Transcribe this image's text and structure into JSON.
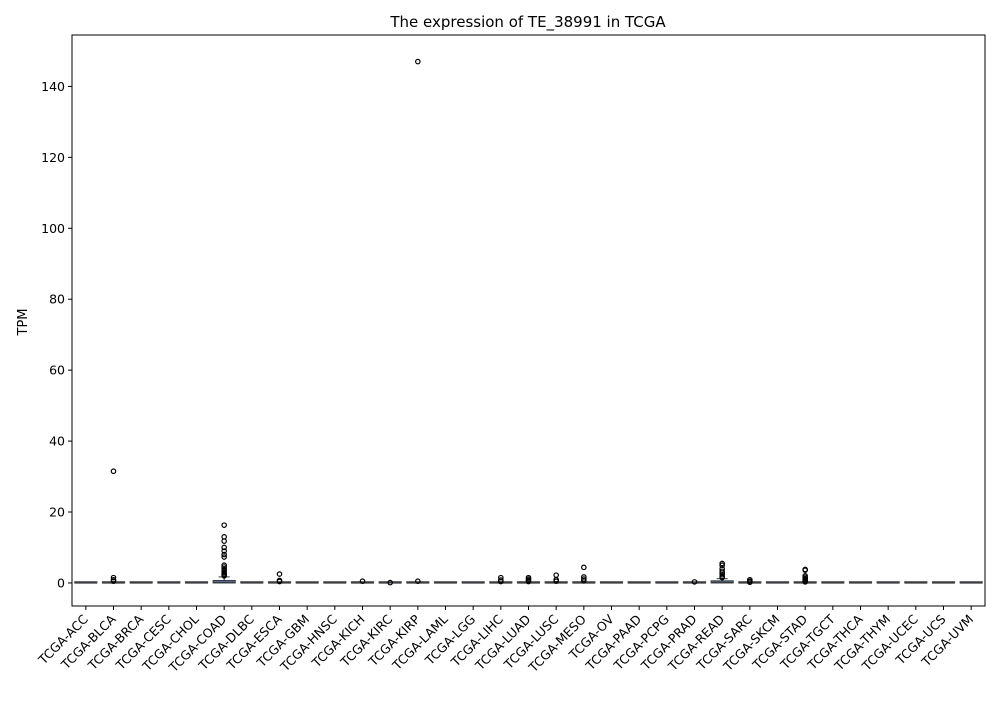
{
  "chart_data": {
    "type": "box",
    "title": "The expression of TE_38991 in TCGA",
    "xlabel": "",
    "ylabel": "TPM",
    "ylim": [
      -6.5,
      154.5
    ],
    "yticks": [
      0,
      20,
      40,
      60,
      80,
      100,
      120,
      140
    ],
    "grid": false,
    "categories": [
      "TCGA-ACC",
      "TCGA-BLCA",
      "TCGA-BRCA",
      "TCGA-CESC",
      "TCGA-CHOL",
      "TCGA-COAD",
      "TCGA-DLBC",
      "TCGA-ESCA",
      "TCGA-GBM",
      "TCGA-HNSC",
      "TCGA-KICH",
      "TCGA-KIRC",
      "TCGA-KIRP",
      "TCGA-LAML",
      "TCGA-LGG",
      "TCGA-LIHC",
      "TCGA-LUAD",
      "TCGA-LUSC",
      "TCGA-MESO",
      "TCGA-OV",
      "TCGA-PAAD",
      "TCGA-PCPG",
      "TCGA-PRAD",
      "TCGA-READ",
      "TCGA-SARC",
      "TCGA-SKCM",
      "TCGA-STAD",
      "TCGA-TGCT",
      "TCGA-THCA",
      "TCGA-THYM",
      "TCGA-UCEC",
      "TCGA-UCS",
      "TCGA-UVM"
    ],
    "boxes": [
      {
        "q1": 0,
        "median": 0,
        "q3": 0,
        "whisker_high": 0,
        "outliers": []
      },
      {
        "q1": 0,
        "median": 0,
        "q3": 0.05,
        "whisker_high": 0.12,
        "outliers": [
          31.5,
          1.5,
          0.9,
          0.5
        ]
      },
      {
        "q1": 0,
        "median": 0,
        "q3": 0,
        "whisker_high": 0,
        "outliers": []
      },
      {
        "q1": 0,
        "median": 0,
        "q3": 0,
        "whisker_high": 0,
        "outliers": []
      },
      {
        "q1": 0,
        "median": 0,
        "q3": 0,
        "whisker_high": 0,
        "outliers": []
      },
      {
        "q1": 0,
        "median": 0.1,
        "q3": 0.7,
        "whisker_high": 1.7,
        "outliers": [
          16.3,
          13,
          11.8,
          10,
          9,
          8,
          7.3,
          5,
          4.5,
          4,
          3.5,
          3,
          2.6,
          2.3,
          2
        ]
      },
      {
        "q1": 0,
        "median": 0,
        "q3": 0,
        "whisker_high": 0,
        "outliers": []
      },
      {
        "q1": 0,
        "median": 0,
        "q3": 0.05,
        "whisker_high": 0.12,
        "outliers": [
          2.5,
          0.7,
          0.4
        ]
      },
      {
        "q1": 0,
        "median": 0,
        "q3": 0,
        "whisker_high": 0,
        "outliers": []
      },
      {
        "q1": 0,
        "median": 0,
        "q3": 0,
        "whisker_high": 0,
        "outliers": []
      },
      {
        "q1": 0,
        "median": 0,
        "q3": 0,
        "whisker_high": 0,
        "outliers": [
          0.5
        ]
      },
      {
        "q1": 0,
        "median": 0,
        "q3": 0,
        "whisker_high": 0,
        "outliers": [
          0.1
        ]
      },
      {
        "q1": 0,
        "median": 0,
        "q3": 0,
        "whisker_high": 0,
        "outliers": [
          147,
          0.5
        ]
      },
      {
        "q1": 0,
        "median": 0,
        "q3": 0,
        "whisker_high": 0,
        "outliers": []
      },
      {
        "q1": 0,
        "median": 0,
        "q3": 0,
        "whisker_high": 0,
        "outliers": []
      },
      {
        "q1": 0,
        "median": 0,
        "q3": 0.05,
        "whisker_high": 0.12,
        "outliers": [
          1.5,
          0.8,
          0.4
        ]
      },
      {
        "q1": 0,
        "median": 0,
        "q3": 0.05,
        "whisker_high": 0.12,
        "outliers": [
          1.5,
          1.1,
          0.7,
          0.4
        ]
      },
      {
        "q1": 0,
        "median": 0,
        "q3": 0.05,
        "whisker_high": 0.12,
        "outliers": [
          2.2,
          0.9,
          0.5
        ]
      },
      {
        "q1": 0,
        "median": 0,
        "q3": 0.1,
        "whisker_high": 0.2,
        "outliers": [
          4.4,
          1.7,
          1.1,
          0.6
        ]
      },
      {
        "q1": 0,
        "median": 0,
        "q3": 0,
        "whisker_high": 0,
        "outliers": []
      },
      {
        "q1": 0,
        "median": 0,
        "q3": 0,
        "whisker_high": 0,
        "outliers": []
      },
      {
        "q1": 0,
        "median": 0,
        "q3": 0,
        "whisker_high": 0,
        "outliers": []
      },
      {
        "q1": 0,
        "median": 0,
        "q3": 0,
        "whisker_high": 0,
        "outliers": [
          0.3
        ]
      },
      {
        "q1": 0,
        "median": 0.1,
        "q3": 0.6,
        "whisker_high": 1.2,
        "outliers": [
          5.5,
          5,
          4,
          3.3,
          2.8,
          2.3,
          1.8,
          1.5
        ]
      },
      {
        "q1": 0,
        "median": 0,
        "q3": 0.05,
        "whisker_high": 0.12,
        "outliers": [
          0.9,
          0.5,
          0.2
        ]
      },
      {
        "q1": 0,
        "median": 0,
        "q3": 0,
        "whisker_high": 0,
        "outliers": []
      },
      {
        "q1": 0,
        "median": 0,
        "q3": 0.05,
        "whisker_high": 0.12,
        "outliers": [
          3.8,
          3.6,
          2,
          1.6,
          1.2,
          0.9,
          0.6,
          0.3
        ]
      },
      {
        "q1": 0,
        "median": 0,
        "q3": 0,
        "whisker_high": 0,
        "outliers": []
      },
      {
        "q1": 0,
        "median": 0,
        "q3": 0,
        "whisker_high": 0,
        "outliers": []
      },
      {
        "q1": 0,
        "median": 0,
        "q3": 0,
        "whisker_high": 0,
        "outliers": []
      },
      {
        "q1": 0,
        "median": 0,
        "q3": 0,
        "whisker_high": 0,
        "outliers": []
      },
      {
        "q1": 0,
        "median": 0,
        "q3": 0,
        "whisker_high": 0,
        "outliers": []
      },
      {
        "q1": 0,
        "median": 0,
        "q3": 0,
        "whisker_high": 0,
        "outliers": []
      }
    ],
    "colors": {
      "box_fill": "#4c72b0",
      "median": "#3a3a3a",
      "outlier_edge": "#000000",
      "axis": "#000000"
    }
  }
}
